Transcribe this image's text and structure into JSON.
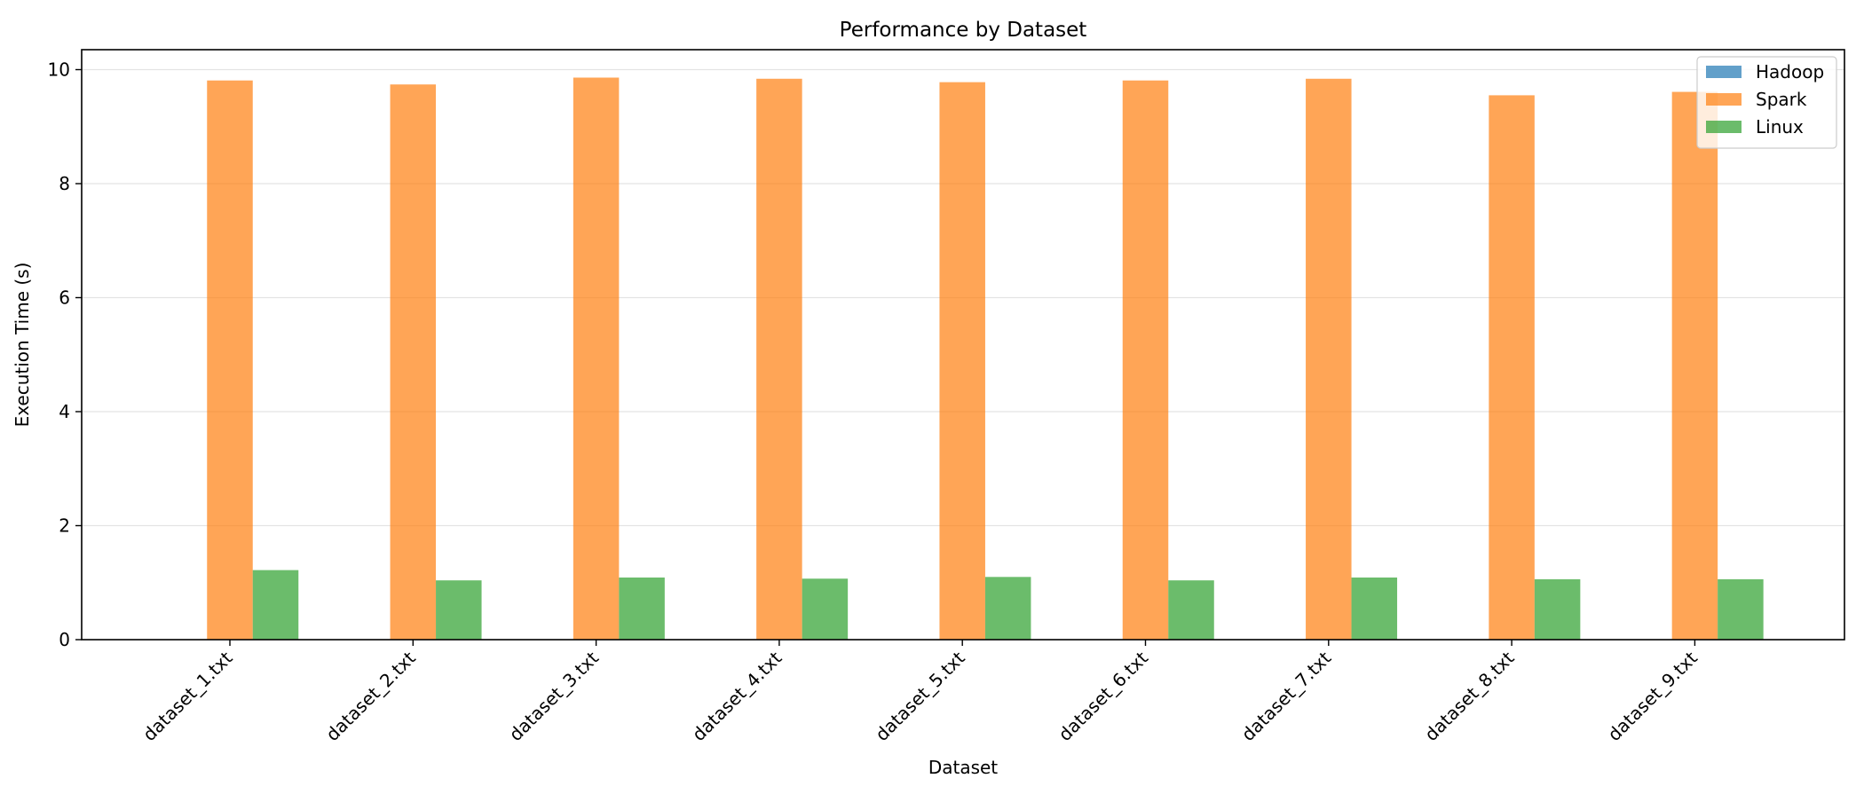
{
  "chart_data": {
    "type": "bar",
    "title": "Performance by Dataset",
    "xlabel": "Dataset",
    "ylabel": "Execution Time (s)",
    "categories": [
      "dataset_1.txt",
      "dataset_2.txt",
      "dataset_3.txt",
      "dataset_4.txt",
      "dataset_5.txt",
      "dataset_6.txt",
      "dataset_7.txt",
      "dataset_8.txt",
      "dataset_9.txt"
    ],
    "series": [
      {
        "name": "Hadoop",
        "color": "#1f77b4",
        "values": [
          0,
          0,
          0,
          0,
          0,
          0,
          0,
          0,
          0
        ]
      },
      {
        "name": "Spark",
        "color": "#ff7f0e",
        "values": [
          9.81,
          9.74,
          9.86,
          9.84,
          9.78,
          9.81,
          9.84,
          9.55,
          9.61
        ]
      },
      {
        "name": "Linux",
        "color": "#2ca02c",
        "values": [
          1.22,
          1.04,
          1.09,
          1.07,
          1.1,
          1.04,
          1.09,
          1.06,
          1.06
        ]
      }
    ],
    "ylim": [
      0,
      10.35
    ],
    "yticks": [
      0,
      2,
      4,
      6,
      8,
      10
    ],
    "grid": "horizontal",
    "legend_position": "top-right"
  }
}
